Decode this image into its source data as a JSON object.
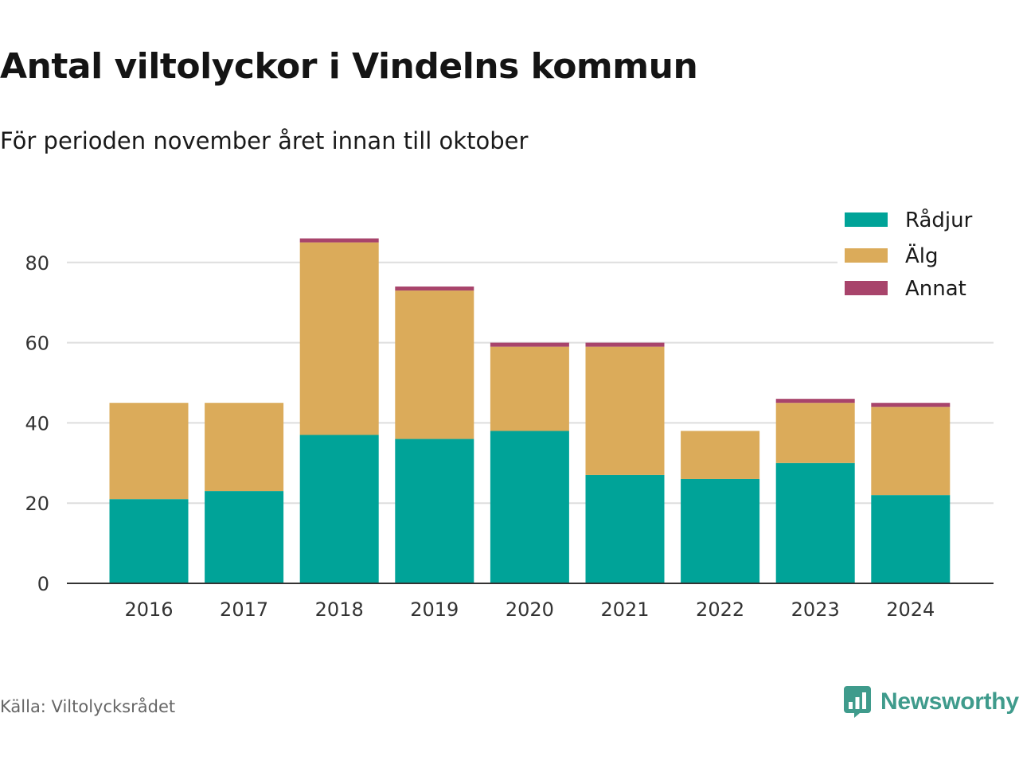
{
  "header": {
    "title": "Antal viltolyckor i Vindelns kommun",
    "subtitle": "För perioden november året innan till oktober"
  },
  "footer": {
    "source": "Källa: Viltolycksrådet",
    "brand": "Newsworthy",
    "brand_icon": "bar-chart-speech-bubble-icon",
    "brand_color": "#3f9b8c"
  },
  "chart_data": {
    "type": "bar",
    "stacked": true,
    "categories": [
      "2016",
      "2017",
      "2018",
      "2019",
      "2020",
      "2021",
      "2022",
      "2023",
      "2024"
    ],
    "series": [
      {
        "name": "Rådjur",
        "color": "#00a398",
        "values": [
          21,
          23,
          37,
          36,
          38,
          27,
          26,
          30,
          22
        ]
      },
      {
        "name": "Älg",
        "color": "#dbab5a",
        "values": [
          24,
          22,
          48,
          37,
          21,
          32,
          12,
          15,
          22
        ]
      },
      {
        "name": "Annat",
        "color": "#a8446b",
        "values": [
          0,
          0,
          1,
          1,
          1,
          1,
          0,
          1,
          1
        ]
      }
    ],
    "ylim": [
      0,
      90
    ],
    "yticks": [
      0,
      20,
      40,
      60,
      80
    ],
    "grid": true,
    "legend": "top-right"
  }
}
